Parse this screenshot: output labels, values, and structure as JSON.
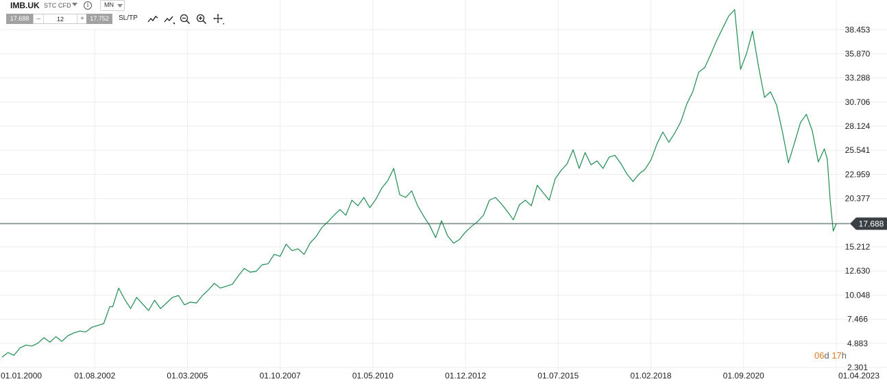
{
  "toolbar": {
    "symbol": "IMB.UK",
    "instrument_type": "STC CFD",
    "timeframe": "MN",
    "sell_price": "17.688",
    "quantity": "12",
    "buy_price": "17.752",
    "minus_label": "–",
    "plus_label": "+",
    "sltp_label": "SL/TP",
    "icons": [
      "chart-type-icon",
      "indicators-icon",
      "zoom-out-icon",
      "zoom-in-icon",
      "crosshair-icon"
    ]
  },
  "countdown": {
    "days": "06",
    "days_unit": "d",
    "hours": "17",
    "hours_unit": "h"
  },
  "chart_data": {
    "type": "line",
    "y_ticks": [
      2.301,
      4.883,
      7.466,
      10.048,
      12.63,
      15.212,
      17.795,
      20.377,
      22.959,
      25.541,
      28.124,
      30.706,
      33.288,
      35.87,
      38.453
    ],
    "y_tick_labels": [
      "2.301",
      "4.883",
      "7.466",
      "10.048",
      "12.630",
      "15.212",
      "",
      "20.377",
      "22.959",
      "25.541",
      "28.124",
      "30.706",
      "33.288",
      "35.870",
      "38.453"
    ],
    "x_ticks": [
      "2000-01",
      "2002-08",
      "2005-03",
      "2007-10",
      "2010-05",
      "2012-12",
      "2015-07",
      "2018-02",
      "2020-09",
      "2023-04"
    ],
    "x_tick_labels": [
      "01.01.2000",
      "01.08.2002",
      "01.03.2005",
      "01.10.2007",
      "01.05.2010",
      "01.12.2012",
      "01.07.2015",
      "01.02.2018",
      "01.09.2020",
      "01.04.2023"
    ],
    "xlim": [
      "2000-01",
      "2023-04"
    ],
    "ylim": [
      2.301,
      40.6
    ],
    "current_price": 17.688,
    "current_price_label": "17.688",
    "colors": {
      "line": "#1e8c4e",
      "grid": "#ececec",
      "price_line": "#3c5a4f",
      "price_tag": "#3a3f44",
      "axis_text": "#222222"
    },
    "grid": true,
    "series": [
      {
        "points": [
          [
            "2000-01",
            3.4
          ],
          [
            "2000-03",
            3.9
          ],
          [
            "2000-05",
            3.6
          ],
          [
            "2000-07",
            4.4
          ],
          [
            "2000-09",
            4.7
          ],
          [
            "2000-11",
            4.6
          ],
          [
            "2001-01",
            4.9
          ],
          [
            "2001-03",
            5.5
          ],
          [
            "2001-05",
            5.0
          ],
          [
            "2001-07",
            5.6
          ],
          [
            "2001-09",
            5.1
          ],
          [
            "2001-11",
            5.7
          ],
          [
            "2002-01",
            6.0
          ],
          [
            "2002-03",
            6.2
          ],
          [
            "2002-05",
            6.1
          ],
          [
            "2002-07",
            6.6
          ],
          [
            "2002-09",
            6.8
          ],
          [
            "2002-11",
            7.0
          ],
          [
            "2003-01",
            8.8
          ],
          [
            "2003-02",
            8.8
          ],
          [
            "2003-04",
            10.8
          ],
          [
            "2003-06",
            9.6
          ],
          [
            "2003-08",
            8.6
          ],
          [
            "2003-10",
            9.8
          ],
          [
            "2003-12",
            9.1
          ],
          [
            "2004-02",
            8.4
          ],
          [
            "2004-04",
            9.5
          ],
          [
            "2004-06",
            8.6
          ],
          [
            "2004-08",
            9.2
          ],
          [
            "2004-10",
            9.8
          ],
          [
            "2004-12",
            10.0
          ],
          [
            "2005-02",
            9.0
          ],
          [
            "2005-04",
            9.3
          ],
          [
            "2005-06",
            9.2
          ],
          [
            "2005-08",
            10.0
          ],
          [
            "2005-10",
            10.6
          ],
          [
            "2005-12",
            11.3
          ],
          [
            "2006-02",
            10.8
          ],
          [
            "2006-04",
            11.0
          ],
          [
            "2006-06",
            11.2
          ],
          [
            "2006-08",
            12.1
          ],
          [
            "2006-10",
            12.9
          ],
          [
            "2006-12",
            12.5
          ],
          [
            "2007-02",
            12.6
          ],
          [
            "2007-04",
            13.3
          ],
          [
            "2007-06",
            13.4
          ],
          [
            "2007-08",
            14.4
          ],
          [
            "2007-10",
            14.2
          ],
          [
            "2007-12",
            15.5
          ],
          [
            "2008-02",
            14.8
          ],
          [
            "2008-04",
            15.0
          ],
          [
            "2008-06",
            14.4
          ],
          [
            "2008-08",
            15.6
          ],
          [
            "2008-10",
            16.3
          ],
          [
            "2008-12",
            17.3
          ],
          [
            "2009-02",
            17.9
          ],
          [
            "2009-04",
            18.6
          ],
          [
            "2009-06",
            19.2
          ],
          [
            "2009-08",
            18.6
          ],
          [
            "2009-10",
            20.2
          ],
          [
            "2009-12",
            19.6
          ],
          [
            "2010-02",
            20.5
          ],
          [
            "2010-04",
            19.4
          ],
          [
            "2010-06",
            20.3
          ],
          [
            "2010-08",
            21.5
          ],
          [
            "2010-10",
            22.3
          ],
          [
            "2010-12",
            23.6
          ],
          [
            "2011-02",
            20.8
          ],
          [
            "2011-04",
            20.5
          ],
          [
            "2011-06",
            21.2
          ],
          [
            "2011-08",
            19.6
          ],
          [
            "2011-10",
            18.5
          ],
          [
            "2011-12",
            17.5
          ],
          [
            "2012-02",
            16.2
          ],
          [
            "2012-04",
            18.0
          ],
          [
            "2012-06",
            16.4
          ],
          [
            "2012-08",
            15.6
          ],
          [
            "2012-10",
            16.0
          ],
          [
            "2012-12",
            16.8
          ],
          [
            "2013-02",
            17.4
          ],
          [
            "2013-04",
            17.9
          ],
          [
            "2013-06",
            18.6
          ],
          [
            "2013-08",
            20.2
          ],
          [
            "2013-10",
            20.5
          ],
          [
            "2013-12",
            19.8
          ],
          [
            "2014-02",
            19.0
          ],
          [
            "2014-04",
            18.1
          ],
          [
            "2014-06",
            19.7
          ],
          [
            "2014-08",
            20.2
          ],
          [
            "2014-10",
            19.6
          ],
          [
            "2014-12",
            21.8
          ],
          [
            "2015-02",
            21.0
          ],
          [
            "2015-04",
            20.2
          ],
          [
            "2015-06",
            22.5
          ],
          [
            "2015-08",
            23.4
          ],
          [
            "2015-10",
            24.1
          ],
          [
            "2015-12",
            25.6
          ],
          [
            "2016-02",
            23.6
          ],
          [
            "2016-04",
            25.3
          ],
          [
            "2016-06",
            24.0
          ],
          [
            "2016-08",
            24.4
          ],
          [
            "2016-10",
            23.6
          ],
          [
            "2016-12",
            24.8
          ],
          [
            "2017-02",
            25.0
          ],
          [
            "2017-04",
            24.1
          ],
          [
            "2017-06",
            23.0
          ],
          [
            "2017-08",
            22.2
          ],
          [
            "2017-10",
            23.0
          ],
          [
            "2017-12",
            23.5
          ],
          [
            "2018-02",
            24.5
          ],
          [
            "2018-04",
            26.2
          ],
          [
            "2018-06",
            27.5
          ],
          [
            "2018-08",
            26.4
          ],
          [
            "2018-10",
            27.4
          ],
          [
            "2018-12",
            28.6
          ],
          [
            "2019-02",
            30.5
          ],
          [
            "2019-04",
            31.8
          ],
          [
            "2019-06",
            33.9
          ],
          [
            "2019-08",
            34.4
          ],
          [
            "2019-10",
            35.8
          ],
          [
            "2019-12",
            37.3
          ],
          [
            "2020-02",
            38.6
          ],
          [
            "2020-04",
            39.9
          ],
          [
            "2020-06",
            40.6
          ],
          [
            "2020-08",
            34.2
          ],
          [
            "2020-10",
            35.9
          ],
          [
            "2020-12",
            38.3
          ],
          [
            "2021-02",
            34.5
          ],
          [
            "2021-04",
            31.2
          ],
          [
            "2021-06",
            31.8
          ],
          [
            "2021-08",
            30.4
          ],
          [
            "2021-10",
            27.5
          ],
          [
            "2021-12",
            24.2
          ],
          [
            "2022-02",
            26.3
          ],
          [
            "2022-04",
            28.5
          ],
          [
            "2022-06",
            29.4
          ],
          [
            "2022-08",
            27.6
          ],
          [
            "2022-10",
            24.3
          ],
          [
            "2022-12",
            25.7
          ],
          [
            "2023-01",
            24.6
          ],
          [
            "2023-02",
            20.0
          ],
          [
            "2023-03",
            16.9
          ],
          [
            "2023-04",
            17.7
          ]
        ]
      }
    ]
  }
}
